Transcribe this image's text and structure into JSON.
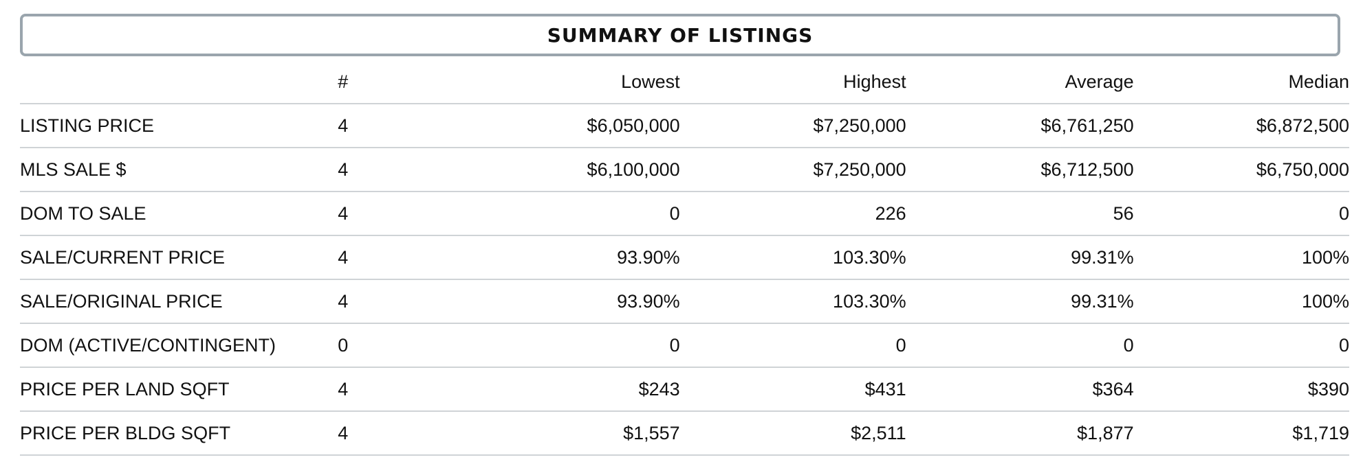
{
  "title": "SUMMARY OF LISTINGS",
  "columns": [
    "",
    "#",
    "Lowest",
    "Highest",
    "Average",
    "Median"
  ],
  "rows": [
    {
      "label": "LISTING PRICE",
      "count": "4",
      "lowest": "$6,050,000",
      "highest": "$7,250,000",
      "average": "$6,761,250",
      "median": "$6,872,500"
    },
    {
      "label": "MLS SALE $",
      "count": "4",
      "lowest": "$6,100,000",
      "highest": "$7,250,000",
      "average": "$6,712,500",
      "median": "$6,750,000"
    },
    {
      "label": "DOM TO SALE",
      "count": "4",
      "lowest": "0",
      "highest": "226",
      "average": "56",
      "median": "0"
    },
    {
      "label": "SALE/CURRENT PRICE",
      "count": "4",
      "lowest": "93.90%",
      "highest": "103.30%",
      "average": "99.31%",
      "median": "100%"
    },
    {
      "label": "SALE/ORIGINAL PRICE",
      "count": "4",
      "lowest": "93.90%",
      "highest": "103.30%",
      "average": "99.31%",
      "median": "100%"
    },
    {
      "label": "DOM (ACTIVE/CONTINGENT)",
      "count": "0",
      "lowest": "0",
      "highest": "0",
      "average": "0",
      "median": "0"
    },
    {
      "label": "PRICE PER LAND SQFT",
      "count": "4",
      "lowest": "$243",
      "highest": "$431",
      "average": "$364",
      "median": "$390"
    },
    {
      "label": "PRICE PER BLDG SQFT",
      "count": "4",
      "lowest": "$1,557",
      "highest": "$2,511",
      "average": "$1,877",
      "median": "$1,719"
    }
  ]
}
